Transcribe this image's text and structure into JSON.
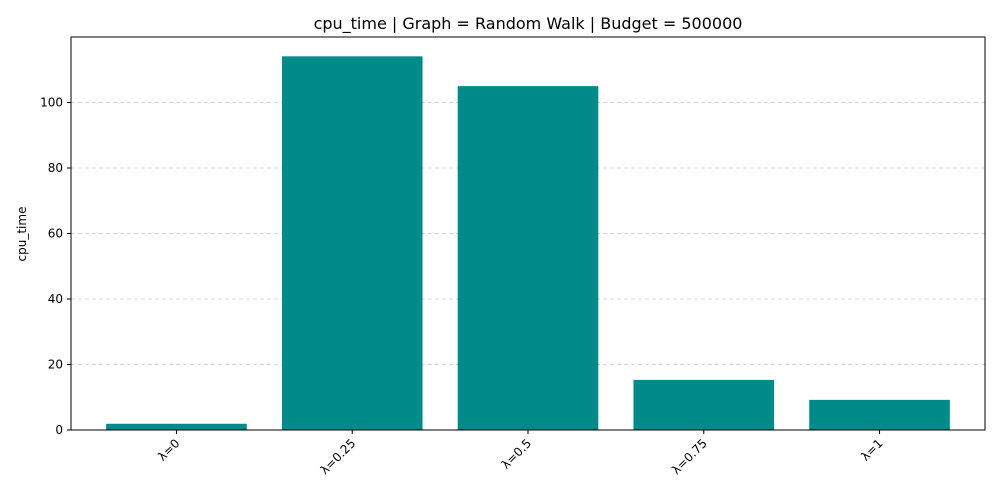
{
  "chart_data": {
    "type": "bar",
    "title": "cpu_time | Graph = Random Walk | Budget = 500000",
    "xlabel": "",
    "ylabel": "cpu_time",
    "categories": [
      "λ=0",
      "λ=0.25",
      "λ=0.5",
      "λ=0.75",
      "λ=1"
    ],
    "values": [
      1.9,
      114.1,
      105.0,
      15.3,
      9.2
    ],
    "ylim": [
      0,
      120
    ],
    "yticks": [
      0,
      20,
      40,
      60,
      80,
      100
    ],
    "ytick_labels": [
      "0",
      "20",
      "40",
      "60",
      "80",
      "100"
    ],
    "grid": "y-dashed",
    "legend": "none",
    "xtick_rotation": "45",
    "colors": {
      "bar": "#008b8b",
      "grid": "#cccccc",
      "axis": "#000000"
    }
  }
}
